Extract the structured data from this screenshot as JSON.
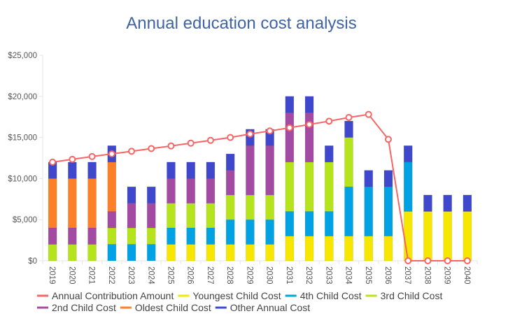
{
  "chart_data": {
    "type": "bar",
    "stacked": true,
    "title": "Annual education cost analysis",
    "xlabel": "",
    "ylabel": "",
    "ylim": [
      0,
      25000
    ],
    "yticks": [
      0,
      5000,
      10000,
      15000,
      20000,
      25000
    ],
    "ytick_labels": [
      "$0",
      "$5,000",
      "$10,000",
      "$15,000",
      "$20,000",
      "$25,000"
    ],
    "grid": false,
    "legend_position": "bottom",
    "categories": [
      "2019",
      "2020",
      "2021",
      "2022",
      "2023",
      "2024",
      "2025",
      "2026",
      "2027",
      "2028",
      "2029",
      "2030",
      "2031",
      "2032",
      "2033",
      "2034",
      "2035",
      "2036",
      "2037",
      "2038",
      "2039",
      "2040"
    ],
    "series": [
      {
        "name": "Youngest Child Cost",
        "type": "bar",
        "color": "#f7e600",
        "values": [
          0,
          0,
          0,
          0,
          0,
          0,
          2000,
          2000,
          2000,
          2000,
          2000,
          2000,
          3000,
          3000,
          3000,
          3000,
          3000,
          3000,
          6000,
          6000,
          6000,
          6000
        ]
      },
      {
        "name": "4th Child Cost",
        "type": "bar",
        "color": "#00a2e3",
        "values": [
          0,
          0,
          0,
          2000,
          2000,
          2000,
          2000,
          2000,
          2000,
          3000,
          3000,
          3000,
          3000,
          3000,
          3000,
          6000,
          6000,
          6000,
          6000,
          0,
          0,
          0
        ]
      },
      {
        "name": "3rd Child Cost",
        "type": "bar",
        "color": "#b5e31c",
        "values": [
          2000,
          2000,
          2000,
          2000,
          2000,
          2000,
          3000,
          3000,
          3000,
          3000,
          3000,
          3000,
          6000,
          6000,
          6000,
          6000,
          0,
          0,
          0,
          0,
          0,
          0
        ]
      },
      {
        "name": "2nd Child Cost",
        "type": "bar",
        "color": "#a34aa3",
        "values": [
          2000,
          2000,
          2000,
          2000,
          3000,
          3000,
          3000,
          3000,
          3000,
          3000,
          6000,
          6000,
          6000,
          6000,
          0,
          0,
          0,
          0,
          0,
          0,
          0,
          0
        ]
      },
      {
        "name": "Oldest Child Cost",
        "type": "bar",
        "color": "#fd7f28",
        "values": [
          6000,
          6000,
          6000,
          6000,
          0,
          0,
          0,
          0,
          0,
          0,
          0,
          0,
          0,
          0,
          0,
          0,
          0,
          0,
          0,
          0,
          0,
          0
        ]
      },
      {
        "name": "Other Annual Cost",
        "type": "bar",
        "color": "#3f48cc",
        "values": [
          2000,
          2000,
          2000,
          2000,
          2000,
          2000,
          2000,
          2000,
          2000,
          2000,
          2000,
          2000,
          2000,
          2000,
          2000,
          2000,
          2000,
          2000,
          2000,
          2000,
          2000,
          2000
        ]
      },
      {
        "name": "Annual Contribution Amount",
        "type": "line",
        "color": "#f96464",
        "values": [
          12000,
          12340,
          12680,
          13000,
          13320,
          13650,
          13970,
          14310,
          14650,
          15000,
          15420,
          15790,
          16180,
          16580,
          16980,
          17430,
          17800,
          14770,
          0,
          0,
          0,
          0
        ]
      }
    ],
    "legend": [
      "Annual Contribution Amount",
      "Youngest Child Cost",
      "4th Child Cost",
      "3rd Child Cost",
      "2nd Child Cost",
      "Oldest Child Cost",
      "Other Annual Cost"
    ]
  }
}
